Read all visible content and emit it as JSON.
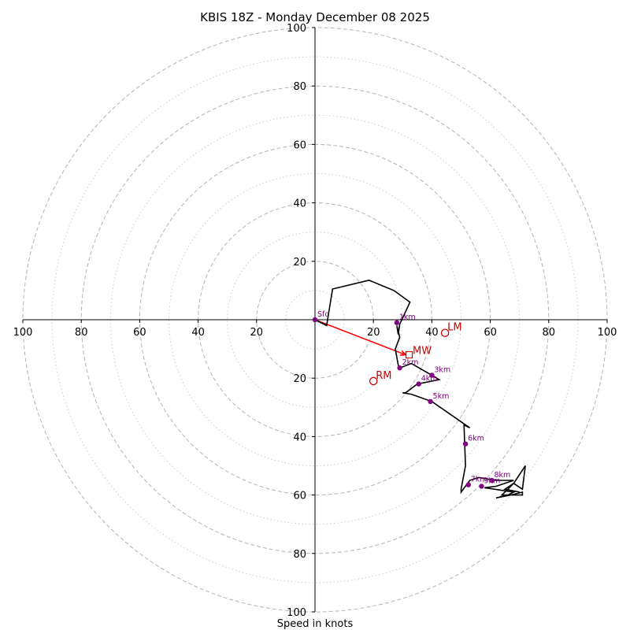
{
  "chart_data": {
    "type": "hodograph",
    "title": "KBIS 18Z - Monday December 08 2025",
    "xlabel": "Speed in knots",
    "range": [
      -100,
      100
    ],
    "major_rings": [
      20,
      40,
      60,
      80,
      100
    ],
    "minor_rings": [
      10,
      30,
      50,
      70,
      90
    ],
    "x_tick_labels": [
      {
        "value": -100,
        "label": "100"
      },
      {
        "value": -80,
        "label": "80"
      },
      {
        "value": -60,
        "label": "60"
      },
      {
        "value": -40,
        "label": "40"
      },
      {
        "value": -20,
        "label": "20"
      },
      {
        "value": 20,
        "label": "20"
      },
      {
        "value": 40,
        "label": "40"
      },
      {
        "value": 60,
        "label": "60"
      },
      {
        "value": 80,
        "label": "80"
      },
      {
        "value": 100,
        "label": "100"
      }
    ],
    "y_tick_labels": [
      {
        "value": 100,
        "label": "100"
      },
      {
        "value": 80,
        "label": "80"
      },
      {
        "value": 60,
        "label": "60"
      },
      {
        "value": 40,
        "label": "40"
      },
      {
        "value": 20,
        "label": "20"
      },
      {
        "value": -20,
        "label": "20"
      },
      {
        "value": -40,
        "label": "40"
      },
      {
        "value": -60,
        "label": "60"
      },
      {
        "value": -80,
        "label": "80"
      },
      {
        "value": -100,
        "label": "100"
      }
    ],
    "trace": [
      [
        0,
        0
      ],
      [
        4,
        -2
      ],
      [
        6,
        10.5
      ],
      [
        18.5,
        13.5
      ],
      [
        27,
        10
      ],
      [
        32.5,
        6
      ],
      [
        29,
        -1.5
      ],
      [
        28.5,
        -5
      ],
      [
        28,
        -2
      ],
      [
        29,
        -6
      ],
      [
        27.5,
        -10
      ],
      [
        28.5,
        -15.5
      ],
      [
        29,
        -16.5
      ],
      [
        33,
        -15
      ],
      [
        40,
        -19
      ],
      [
        42.5,
        -20.5
      ],
      [
        35,
        -22
      ],
      [
        31,
        -25
      ],
      [
        30,
        -25
      ],
      [
        33,
        -25.5
      ],
      [
        40,
        -28
      ],
      [
        53,
        -37
      ],
      [
        51,
        -36
      ],
      [
        51.5,
        -50
      ],
      [
        50,
        -58
      ],
      [
        50,
        -59
      ],
      [
        53,
        -55
      ],
      [
        56,
        -54
      ],
      [
        62,
        -55
      ],
      [
        68,
        -55
      ],
      [
        62,
        -57
      ],
      [
        58,
        -57.5
      ],
      [
        68,
        -59
      ],
      [
        66,
        -60
      ],
      [
        62,
        -61
      ],
      [
        67,
        -60
      ],
      [
        71,
        -59
      ],
      [
        71,
        -60
      ],
      [
        64,
        -60
      ],
      [
        68,
        -56
      ],
      [
        71,
        -58
      ],
      [
        72,
        -50
      ],
      [
        68,
        -56
      ],
      [
        65,
        -58
      ],
      [
        70,
        -59
      ]
    ],
    "height_markers": [
      {
        "label": "Sfc",
        "u": 0,
        "v": 0
      },
      {
        "label": "1km",
        "u": 28,
        "v": -1
      },
      {
        "label": "2km",
        "u": 29,
        "v": -16.5
      },
      {
        "label": "3km",
        "u": 40,
        "v": -19
      },
      {
        "label": "4km",
        "u": 35.5,
        "v": -22
      },
      {
        "label": "5km",
        "u": 39.5,
        "v": -28
      },
      {
        "label": "6km",
        "u": 51.5,
        "v": -42.5
      },
      {
        "label": "7km",
        "u": 52.5,
        "v": -56.5
      },
      {
        "label": "8km",
        "u": 60.5,
        "v": -55
      },
      {
        "label": "9km",
        "u": 57,
        "v": -57
      }
    ],
    "storm_motion": {
      "mean_wind": {
        "label": "MW",
        "u": 31,
        "v": -12
      },
      "left_mover": {
        "label": "LM",
        "u": 44.5,
        "v": -4.5
      },
      "right_mover": {
        "label": "RM",
        "u": 20,
        "v": -21
      }
    },
    "colors": {
      "trace": "#000000",
      "markers": "#800080",
      "storm_motion": "#cc0000",
      "shear_vector": "#ff0000",
      "major_ring": "#b4b4b4",
      "minor_ring": "#cccccc"
    }
  }
}
